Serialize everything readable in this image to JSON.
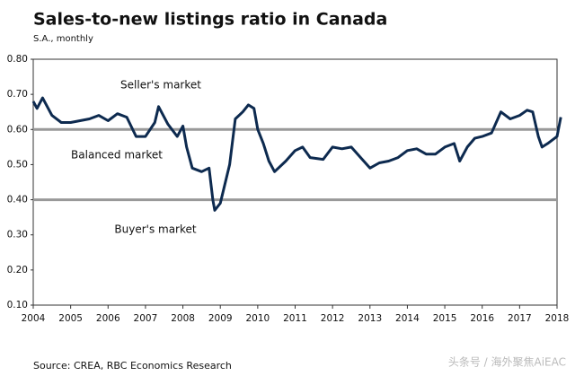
{
  "chart_data": {
    "type": "line",
    "title": "Sales-to-new listings ratio in Canada",
    "subtitle": "S.A., monthly",
    "annotations": [
      "Seller's market",
      "Balanced market",
      "Buyer's market"
    ],
    "source": "Source: CREA, RBC Economics Research",
    "watermark": "头条号 / 海外聚焦AiEAC",
    "reference_lines": [
      0.6,
      0.4
    ],
    "reference_color": "#999999",
    "x": [
      2004,
      2004.1,
      2004.25,
      2004.5,
      2004.75,
      2005,
      2005.25,
      2005.5,
      2005.75,
      2006,
      2006.25,
      2006.5,
      2006.75,
      2007,
      2007.25,
      2007.35,
      2007.6,
      2007.85,
      2008,
      2008.1,
      2008.25,
      2008.5,
      2008.7,
      2008.8,
      2008.85,
      2009,
      2009.25,
      2009.4,
      2009.6,
      2009.75,
      2009.9,
      2010,
      2010.15,
      2010.3,
      2010.45,
      2010.75,
      2011,
      2011.2,
      2011.4,
      2011.75,
      2012,
      2012.25,
      2012.5,
      2012.75,
      2013,
      2013.25,
      2013.5,
      2013.75,
      2014,
      2014.25,
      2014.5,
      2014.75,
      2015,
      2015.25,
      2015.4,
      2015.6,
      2015.8,
      2016,
      2016.25,
      2016.5,
      2016.75,
      2017,
      2017.2,
      2017.35,
      2017.5,
      2017.6,
      2017.75,
      2018,
      2018.1
    ],
    "series": [
      {
        "name": "Sales-to-new listings ratio",
        "color": "#0d2a4f",
        "values": [
          0.68,
          0.66,
          0.69,
          0.64,
          0.62,
          0.62,
          0.625,
          0.63,
          0.64,
          0.625,
          0.645,
          0.635,
          0.58,
          0.58,
          0.62,
          0.665,
          0.615,
          0.58,
          0.61,
          0.55,
          0.49,
          0.48,
          0.49,
          0.4,
          0.37,
          0.39,
          0.5,
          0.63,
          0.65,
          0.67,
          0.66,
          0.6,
          0.56,
          0.51,
          0.48,
          0.51,
          0.54,
          0.55,
          0.52,
          0.515,
          0.55,
          0.545,
          0.55,
          0.52,
          0.49,
          0.505,
          0.51,
          0.52,
          0.54,
          0.545,
          0.53,
          0.53,
          0.55,
          0.56,
          0.51,
          0.55,
          0.575,
          0.58,
          0.59,
          0.65,
          0.63,
          0.64,
          0.655,
          0.65,
          0.58,
          0.55,
          0.56,
          0.58,
          0.635
        ]
      }
    ],
    "xlim": [
      2004,
      2018
    ],
    "xticks": [
      2004,
      2005,
      2006,
      2007,
      2008,
      2009,
      2010,
      2011,
      2012,
      2013,
      2014,
      2015,
      2016,
      2017,
      2018
    ],
    "ylim": [
      0.1,
      0.8
    ],
    "yticks": [
      {
        "value": 0.1,
        "label": "0.10"
      },
      {
        "value": 0.2,
        "label": "0.20"
      },
      {
        "value": 0.3,
        "label": "0.30"
      },
      {
        "value": 0.4,
        "label": "0.40"
      },
      {
        "value": 0.5,
        "label": "0.50"
      },
      {
        "value": 0.6,
        "label": "0.60"
      },
      {
        "value": 0.7,
        "label": "0.70"
      },
      {
        "value": 0.8,
        "label": "0.80"
      }
    ]
  }
}
